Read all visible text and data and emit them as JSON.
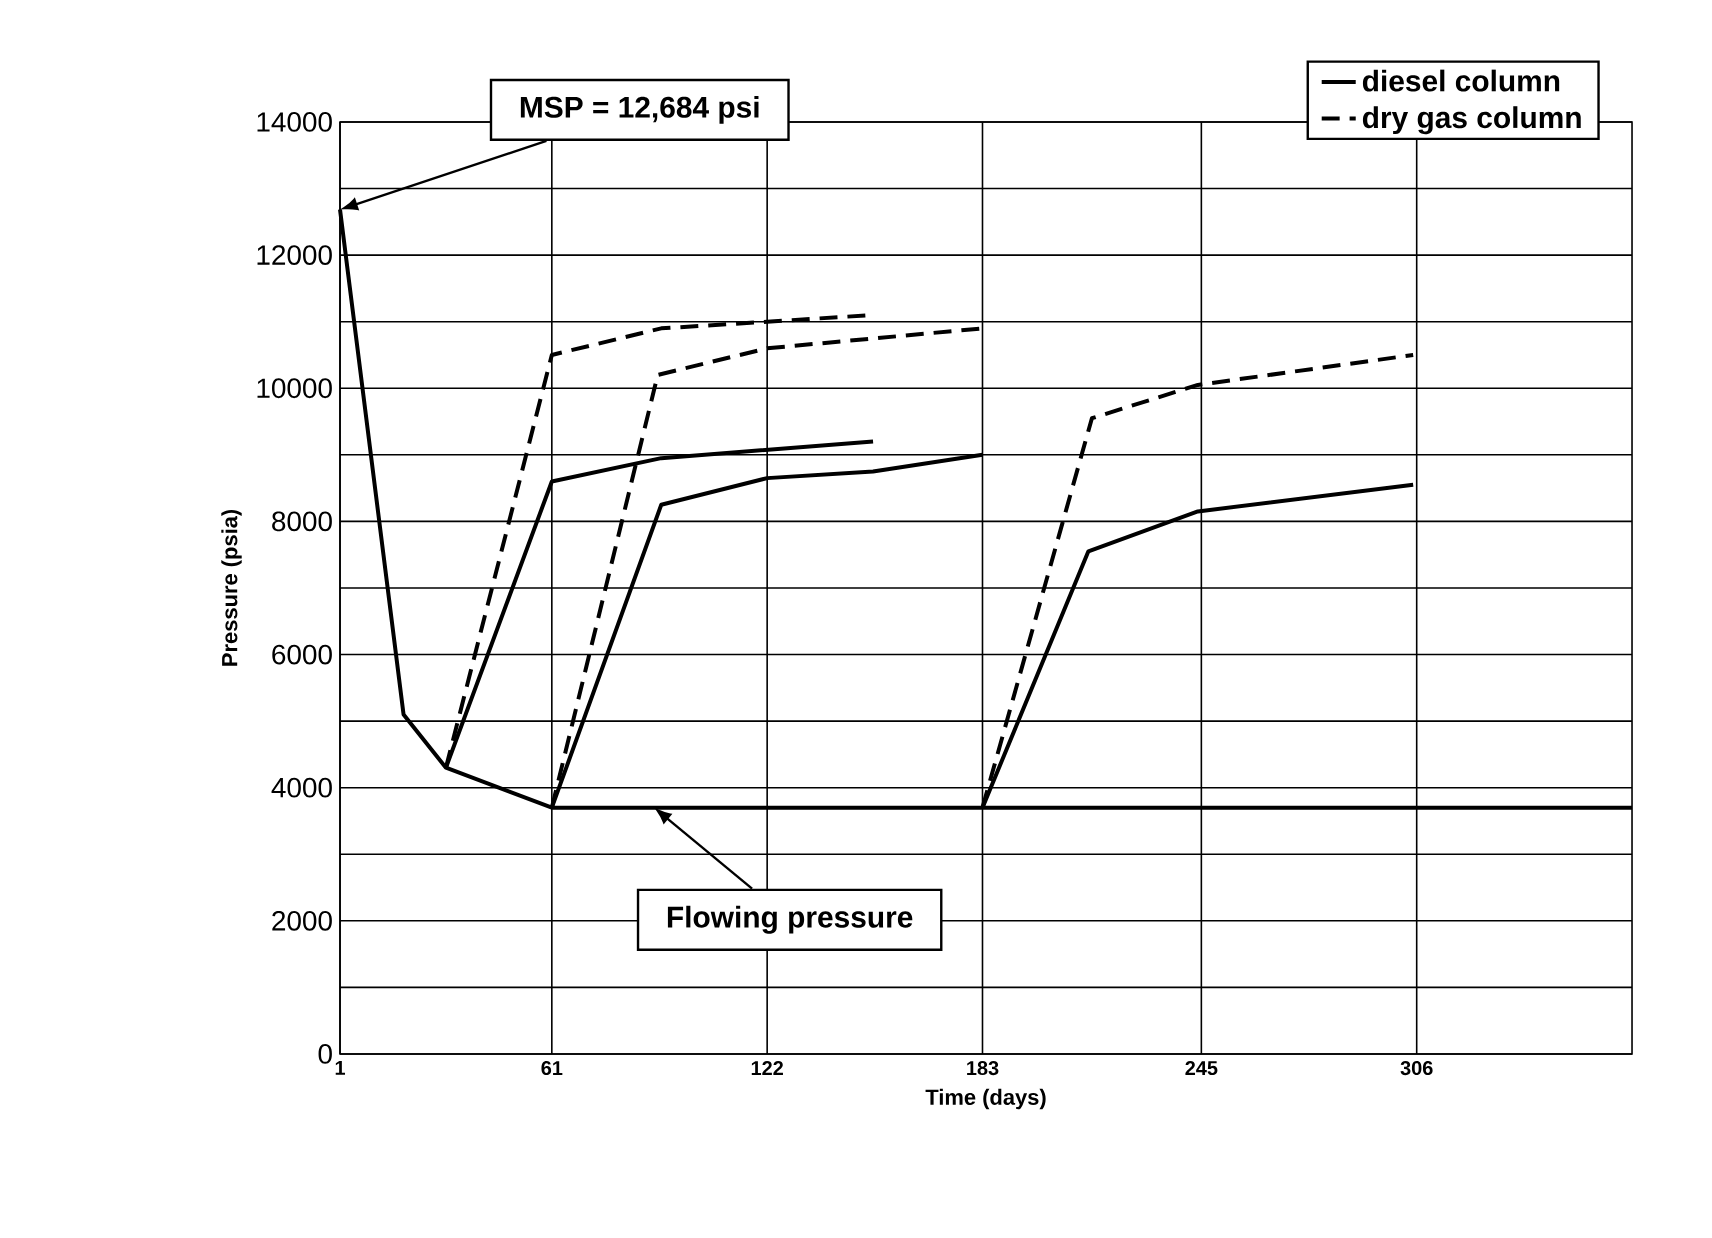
{
  "chart_data": {
    "type": "line",
    "xlabel": "Time (days)",
    "ylabel": "Pressure (psia)",
    "xlim": [
      1,
      367
    ],
    "xticks": [
      1,
      61,
      122,
      183,
      245,
      306
    ],
    "ylim": [
      0,
      14000
    ],
    "yticks": [
      0,
      {
        "value": 1000,
        "label": null
      },
      2000,
      {
        "value": 3000,
        "label": null
      },
      4000,
      {
        "value": 5000,
        "label": null
      },
      6000,
      {
        "value": 7000,
        "label": null
      },
      8000,
      {
        "value": 9000,
        "label": null
      },
      10000,
      {
        "value": 11000,
        "label": null
      },
      12000,
      {
        "value": 13000,
        "label": null
      },
      14000
    ],
    "grid": true,
    "legend": "top right",
    "marker": "none",
    "series": [
      {
        "name": "diesel column",
        "color": "#000000",
        "line_style": "solid",
        "x": [
          1,
          19,
          31,
          61,
          367
        ],
        "values": [
          12684,
          5100,
          4300,
          3700,
          3700
        ]
      },
      {
        "color": "#000000",
        "line_style": "solid",
        "x": [
          31,
          61,
          92,
          152
        ],
        "values": [
          4300,
          8600,
          8950,
          9200
        ]
      },
      {
        "color": "#000000",
        "line_style": "solid",
        "x": [
          61,
          92,
          122,
          152,
          183
        ],
        "values": [
          3700,
          8250,
          8650,
          8750,
          9000
        ]
      },
      {
        "color": "#000000",
        "line_style": "solid",
        "x": [
          183,
          213,
          244,
          305
        ],
        "values": [
          3700,
          7550,
          8150,
          8550
        ]
      },
      {
        "name": "dry gas column",
        "color": "#000000",
        "line_style": "dashed",
        "x": [
          31,
          61,
          92,
          122,
          152
        ],
        "values": [
          4300,
          10500,
          10900,
          11000,
          11100
        ]
      },
      {
        "color": "#000000",
        "line_style": "dashed",
        "x": [
          61,
          91,
          122,
          183
        ],
        "values": [
          3700,
          10200,
          10600,
          10900
        ]
      },
      {
        "color": "#000000",
        "line_style": "dashed",
        "x": [
          183,
          214,
          244,
          305
        ],
        "values": [
          3700,
          9550,
          10050,
          10500
        ]
      }
    ],
    "annotations": [
      {
        "text": "MSP = 12,684 psi",
        "x": 1,
        "y": 12684
      },
      {
        "text": "Flowing pressure",
        "x": 90,
        "y": 3700
      }
    ]
  }
}
